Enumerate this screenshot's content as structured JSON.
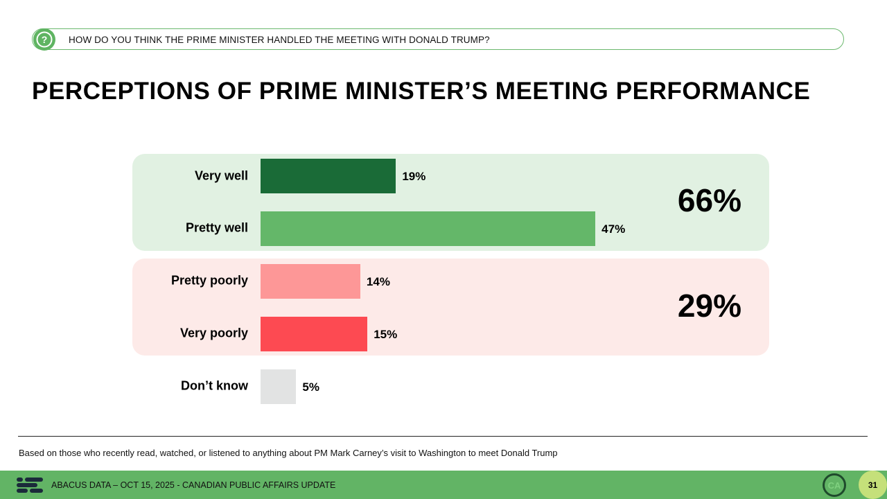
{
  "question": {
    "text": "HOW DO YOU THINK THE PRIME MINISTER HANDLED THE MEETING WITH DONALD TRUMP?",
    "icon": "question-mark-icon"
  },
  "page_title": "PERCEPTIONS OF PRIME MINISTER’S MEETING PERFORMANCE",
  "chart_data": {
    "type": "bar",
    "orientation": "horizontal",
    "title": "PERCEPTIONS OF PRIME MINISTER’S MEETING PERFORMANCE",
    "categories": [
      "Very well",
      "Pretty well",
      "Pretty poorly",
      "Very poorly",
      "Don’t know"
    ],
    "values": [
      19,
      47,
      14,
      15,
      5
    ],
    "value_labels": [
      "19%",
      "47%",
      "14%",
      "15%",
      "5%"
    ],
    "unit": "%",
    "colors": [
      "#1a6b37",
      "#64b769",
      "#fd9797",
      "#fd4a52",
      "#e2e3e3"
    ],
    "groups": [
      {
        "name": "well",
        "members": [
          0,
          1
        ],
        "total_label": "66%",
        "background": "#e1f1e2"
      },
      {
        "name": "poorly",
        "members": [
          2,
          3
        ],
        "total_label": "29%",
        "background": "#fdeae8"
      }
    ],
    "xlim": [
      0,
      100
    ],
    "grid": false,
    "xlabel": "",
    "ylabel": ""
  },
  "footnote": "Based on those who recently read, watched, or listened to anything about PM Mark Carney’s visit to Washington to meet Donald Trump",
  "footer": {
    "text": "ABACUS DATA – OCT 15, 2025 - CANADIAN PUBLIC AFFAIRS UPDATE",
    "badge": "CA",
    "page_number": "31",
    "band_color": "#62b465"
  }
}
